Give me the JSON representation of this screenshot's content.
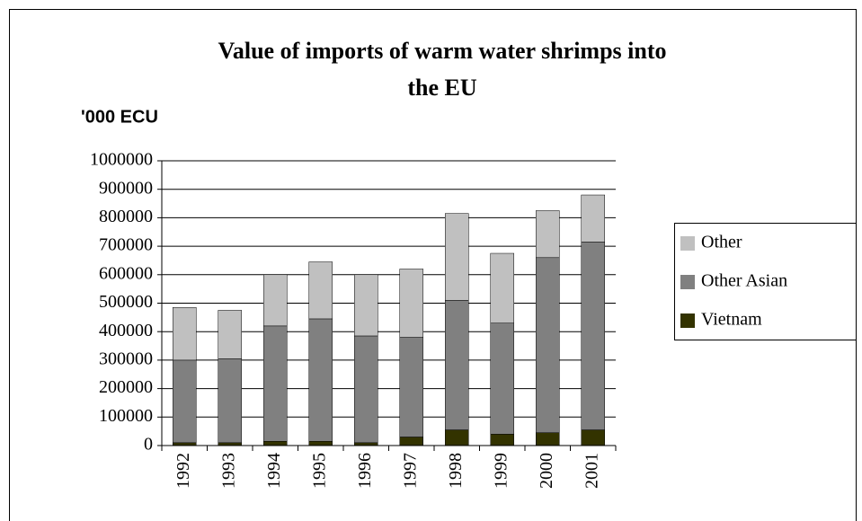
{
  "chart_data": {
    "type": "stacked_bar",
    "title": "Value of imports of warm water shrimps into the EU",
    "y_label": "'000 ECU",
    "categories": [
      "1992",
      "1993",
      "1994",
      "1995",
      "1996",
      "1997",
      "1998",
      "1999",
      "2000",
      "2001"
    ],
    "series": [
      {
        "name": "Vietnam",
        "color": "#333300",
        "values": [
          10000,
          10000,
          15000,
          15000,
          10000,
          30000,
          55000,
          40000,
          45000,
          55000
        ]
      },
      {
        "name": "Other Asian",
        "color": "#808080",
        "values": [
          290000,
          295000,
          405000,
          430000,
          375000,
          350000,
          455000,
          390000,
          615000,
          660000
        ]
      },
      {
        "name": "Other",
        "color": "#c0c0c0",
        "values": [
          185000,
          170000,
          180000,
          200000,
          215000,
          240000,
          305000,
          245000,
          165000,
          165000
        ]
      }
    ],
    "ylim": [
      0,
      1000000
    ],
    "yticks": [
      0,
      100000,
      200000,
      300000,
      400000,
      500000,
      600000,
      700000,
      800000,
      900000,
      1000000
    ],
    "grid": true,
    "legend": "right"
  }
}
